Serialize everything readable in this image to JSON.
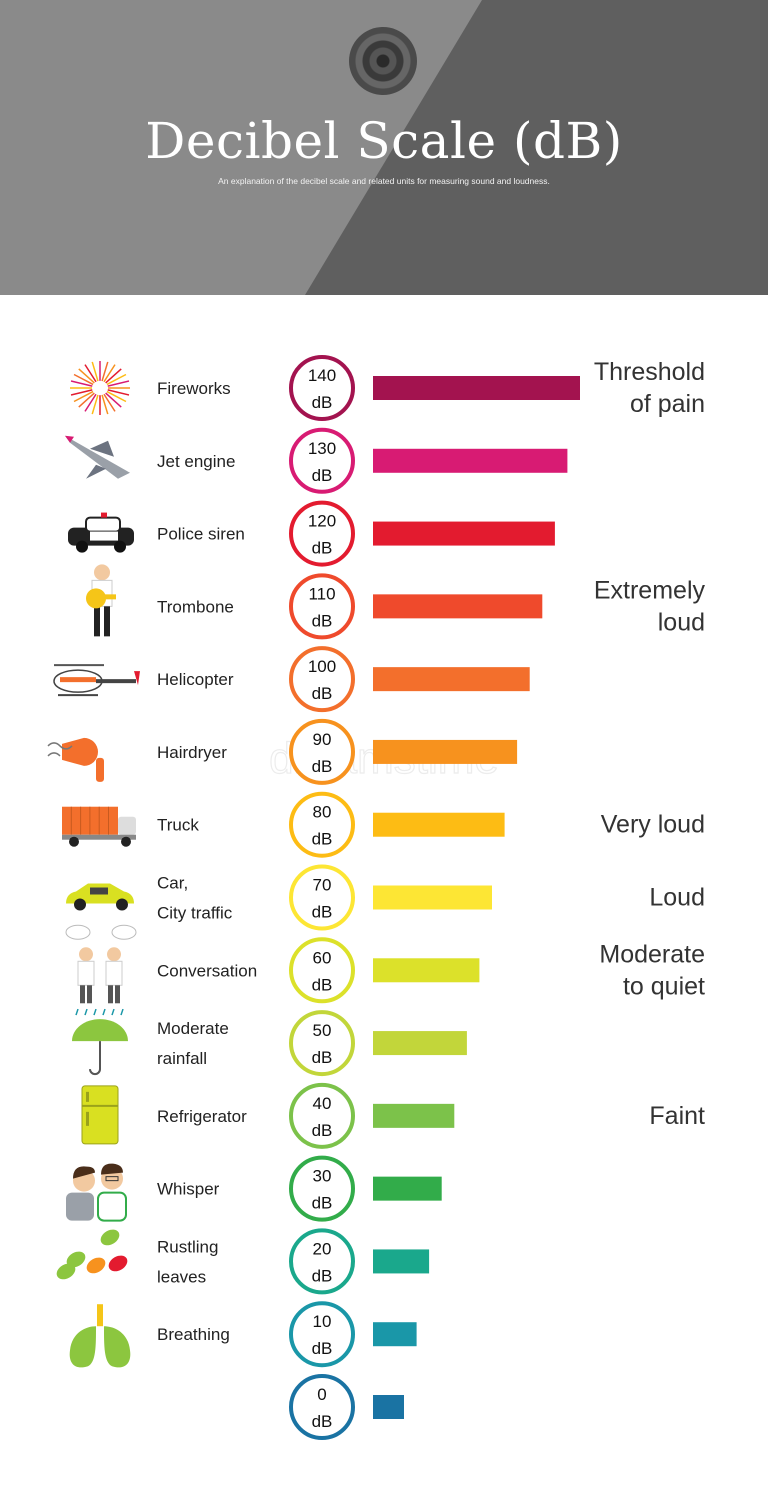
{
  "header": {
    "title": "Decibel Scale (dB)",
    "subtitle": "An explanation of the decibel scale and related units for measuring sound and loudness."
  },
  "watermark": "dreamstime",
  "chart_data": {
    "type": "bar",
    "unit": "dB",
    "categories": [
      "Fireworks",
      "Jet engine",
      "Police siren",
      "Trombone",
      "Helicopter",
      "Hairdryer",
      "Truck",
      "Car,\nCity traffic",
      "Conversation",
      "Moderate\nrainfall",
      "Refrigerator",
      "Whisper",
      "Rustling\nleaves",
      "Breathing",
      ""
    ],
    "values": [
      140,
      130,
      120,
      110,
      100,
      90,
      80,
      70,
      60,
      50,
      40,
      30,
      20,
      10,
      0
    ],
    "colors": [
      "#a3134f",
      "#d81b73",
      "#e31b2f",
      "#ef4a2c",
      "#f36f2c",
      "#f7921e",
      "#fdbc14",
      "#fde634",
      "#dce12a",
      "#c2d63a",
      "#7cc24a",
      "#32ac4a",
      "#1aa88c",
      "#1a97a8",
      "#1a73a3"
    ],
    "icons": [
      "fireworks-icon",
      "jet-icon",
      "police-car-icon",
      "trombone-player-icon",
      "helicopter-icon",
      "hairdryer-icon",
      "truck-icon",
      "car-icon",
      "conversation-icon",
      "umbrella-rain-icon",
      "refrigerator-icon",
      "whisper-icon",
      "leaves-icon",
      "lungs-icon",
      ""
    ],
    "zones": [
      {
        "label": "Threshold\nof pain",
        "at": 140
      },
      {
        "label": "Extremely\nloud",
        "at": 110
      },
      {
        "label": "Very loud",
        "at": 80
      },
      {
        "label": "Loud",
        "at": 70
      },
      {
        "label": "Moderate\nto quiet",
        "at": 60
      },
      {
        "label": "Faint",
        "at": 40
      }
    ]
  }
}
